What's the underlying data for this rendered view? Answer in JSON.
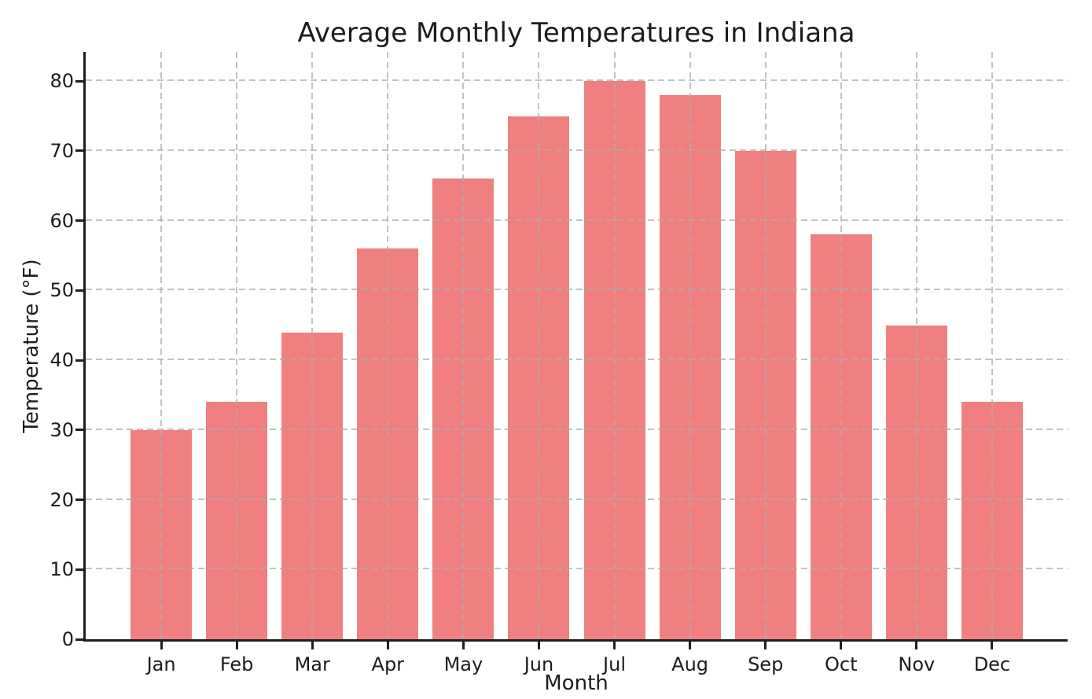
{
  "chart_data": {
    "type": "bar",
    "title": "Average Monthly Temperatures in Indiana",
    "xlabel": "Month",
    "ylabel": "Temperature (°F)",
    "categories": [
      "Jan",
      "Feb",
      "Mar",
      "Apr",
      "May",
      "Jun",
      "Jul",
      "Aug",
      "Sep",
      "Oct",
      "Nov",
      "Dec"
    ],
    "values": [
      30,
      34,
      44,
      56,
      66,
      75,
      80,
      78,
      70,
      58,
      45,
      34
    ],
    "yticks": [
      0,
      10,
      20,
      30,
      40,
      50,
      60,
      70,
      80
    ],
    "ylim": [
      0,
      84.2
    ],
    "bar_color": "#F08080",
    "grid": true,
    "grid_style": "dashed",
    "legend_position": "none"
  }
}
